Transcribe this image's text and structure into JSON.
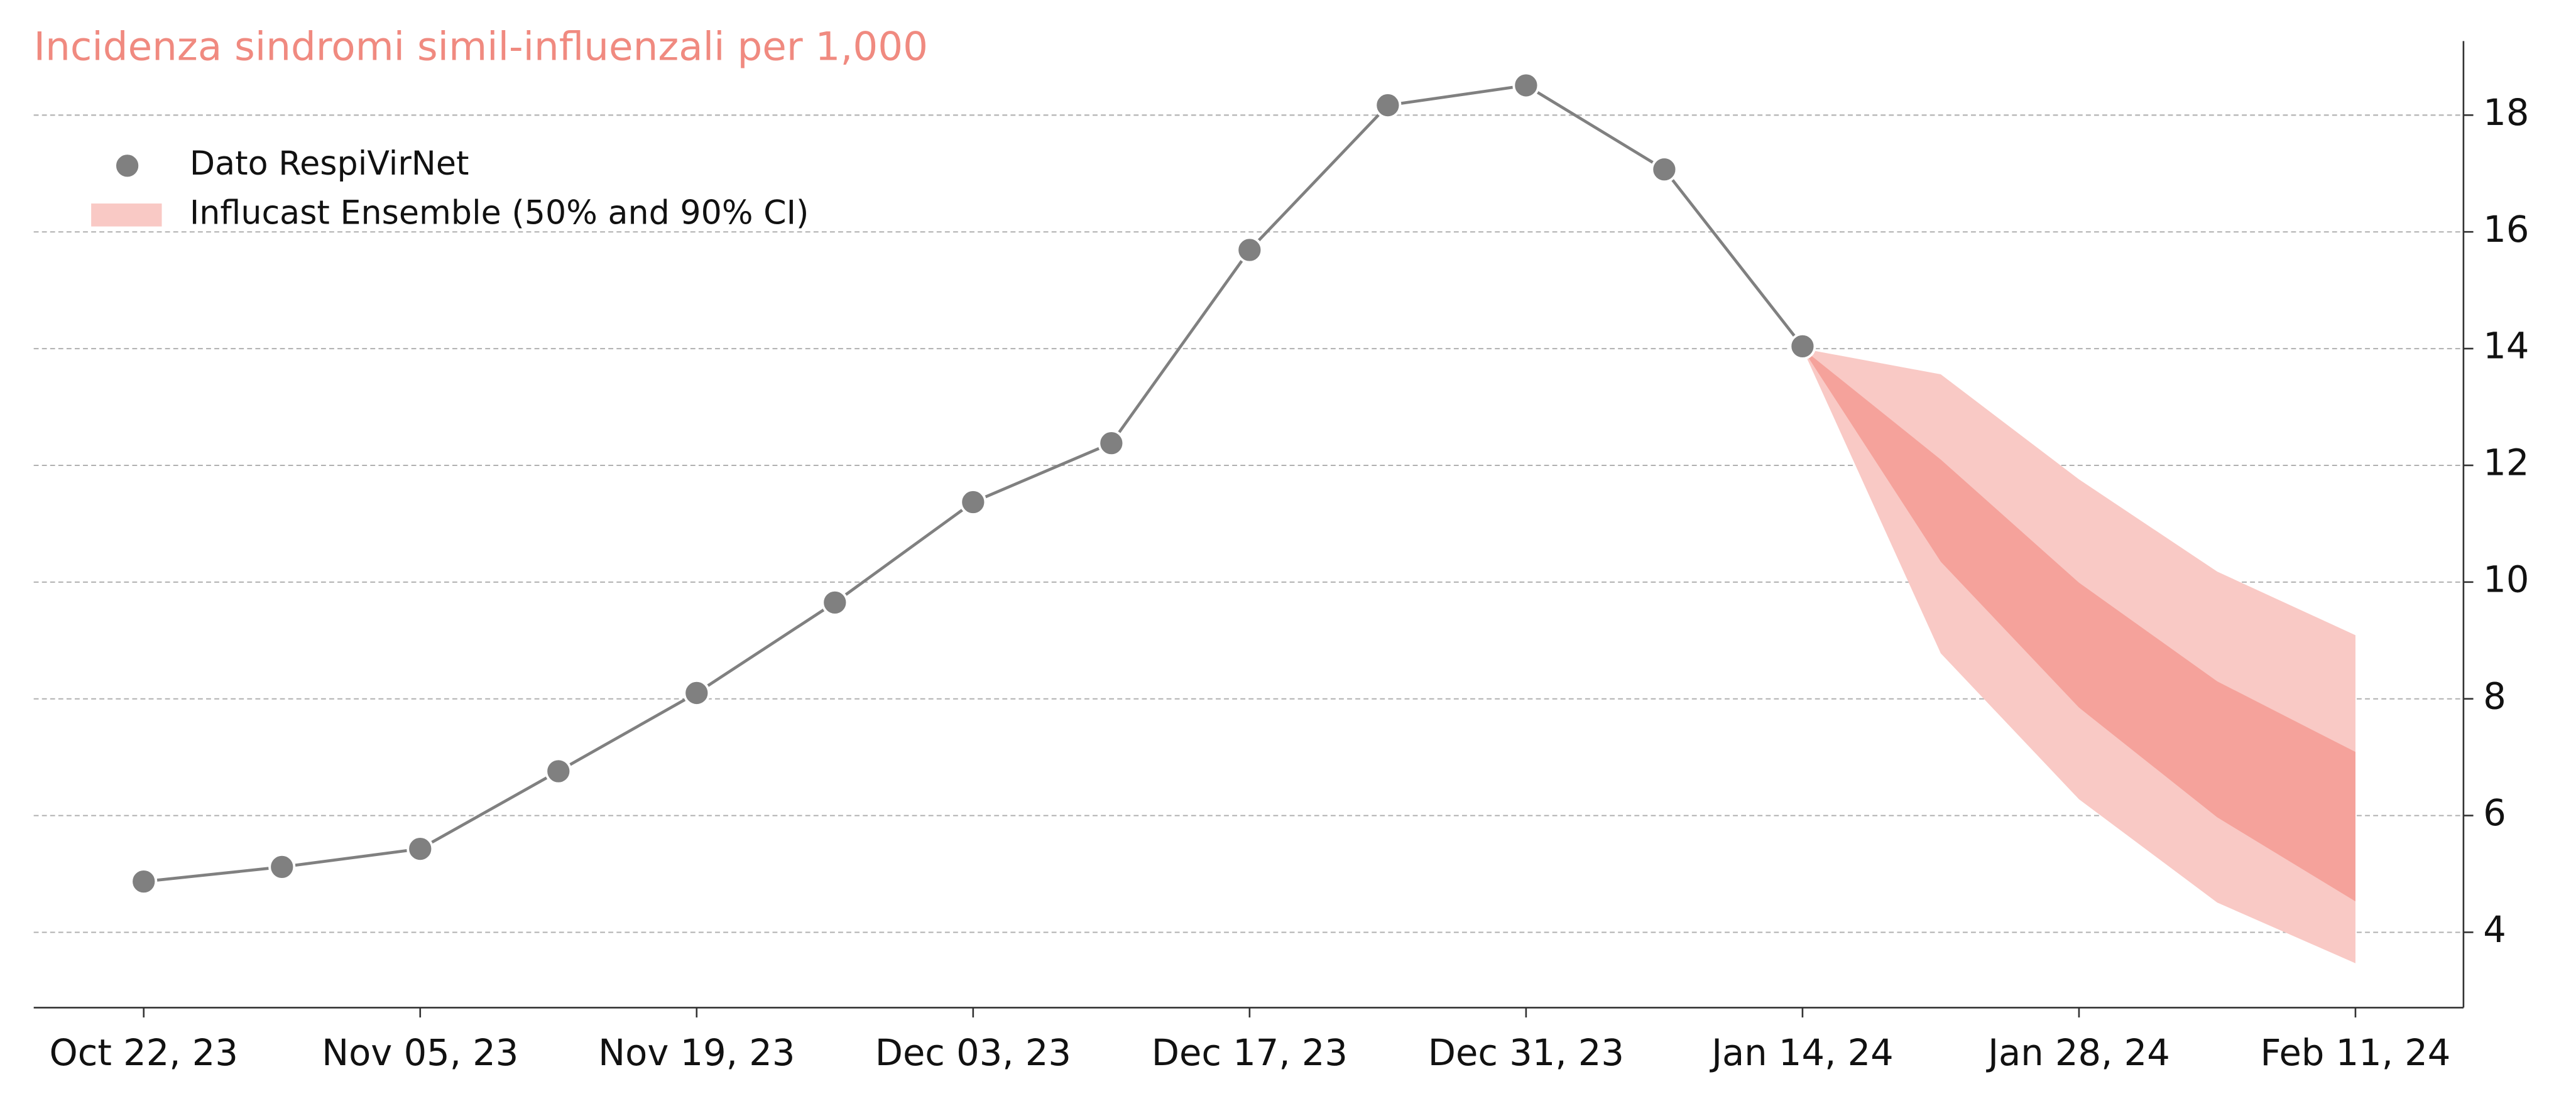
{
  "chart_data": {
    "type": "line",
    "title": "Incidenza sindromi simil-influenzali per 1,000",
    "x": [
      "2023-10-22",
      "2023-10-29",
      "2023-11-05",
      "2023-11-12",
      "2023-11-19",
      "2023-11-26",
      "2023-12-03",
      "2023-12-10",
      "2023-12-17",
      "2023-12-24",
      "2023-12-31",
      "2024-01-07",
      "2024-01-14"
    ],
    "series": [
      {
        "name": "Dato RespiVirNet",
        "color": "#808080",
        "values": [
          4.87,
          5.12,
          5.43,
          6.76,
          8.1,
          9.65,
          11.37,
          12.38,
          15.69,
          18.17,
          18.51,
          17.07,
          14.04
        ]
      }
    ],
    "forecast": {
      "name": "Influcast Ensemble (50% and 90% CI)",
      "x": [
        "2024-01-14",
        "2024-01-21",
        "2024-01-28",
        "2024-02-04",
        "2024-02-11"
      ],
      "ci90": {
        "color": "#f9c9c5",
        "lower": [
          14.0,
          8.78,
          6.28,
          4.51,
          3.47
        ],
        "upper": [
          14.0,
          13.56,
          11.76,
          10.18,
          9.09
        ]
      },
      "ci50": {
        "color": "#f5a29b",
        "lower": [
          14.0,
          10.35,
          7.85,
          5.97,
          4.53
        ],
        "upper": [
          14.0,
          12.1,
          9.99,
          8.3,
          7.09
        ]
      }
    },
    "ylim": [
      2.71,
      19.27
    ],
    "yticks": [
      4,
      6,
      8,
      10,
      12,
      14,
      16,
      18
    ],
    "xticks": [
      {
        "value": "2023-10-22",
        "label": "Oct 22, 23"
      },
      {
        "value": "2023-11-05",
        "label": "Nov 05, 23"
      },
      {
        "value": "2023-11-19",
        "label": "Nov 19, 23"
      },
      {
        "value": "2023-12-03",
        "label": "Dec 03, 23"
      },
      {
        "value": "2023-12-17",
        "label": "Dec 17, 23"
      },
      {
        "value": "2023-12-31",
        "label": "Dec 31, 23"
      },
      {
        "value": "2024-01-14",
        "label": "Jan 14, 24"
      },
      {
        "value": "2024-01-28",
        "label": "Jan 28, 24"
      },
      {
        "value": "2024-02-11",
        "label": "Feb 11, 24"
      }
    ],
    "yaxis_side": "right",
    "grid": true,
    "title_color": "#f08a80"
  }
}
